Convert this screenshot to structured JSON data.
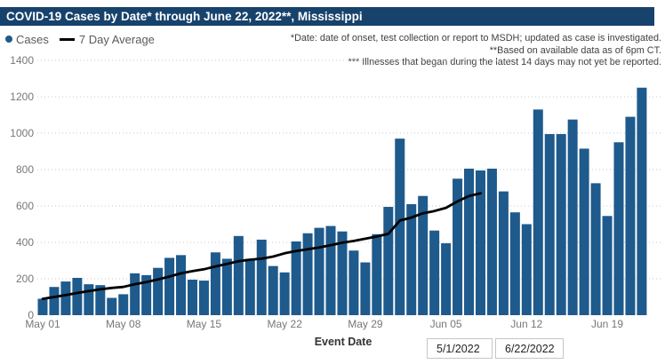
{
  "title_bar": {
    "text": "COVID-19 Cases by Date* through June 22, 2022**, Mississippi",
    "bg_color": "#17426B"
  },
  "legend": {
    "cases_label": "Cases",
    "avg_label": "7 Day Average",
    "dot_color": "#1E5A8C",
    "line_color": "#000000"
  },
  "annotations": {
    "line1": "*Date: date of onset, test collection or report to MSDH; updated as case is investigated.",
    "line2": "**Based on available data as of 6pm CT.",
    "line3": "*** Illnesses that began during the latest 14 days may not yet be reported."
  },
  "axis": {
    "x_title": "Event Date"
  },
  "date_filters": {
    "start": "5/1/2022",
    "end": "6/22/2022"
  },
  "chart_data": {
    "type": "bar",
    "title": "COVID-19 Cases by Date* through June 22, 2022**, Mississippi",
    "xlabel": "Event Date",
    "ylabel": "",
    "ylim": [
      0,
      1400
    ],
    "y_ticks": [
      0,
      200,
      400,
      600,
      800,
      1000,
      1200,
      1400
    ],
    "grid": "horizontal-dotted",
    "legend_position": "top-left",
    "x_tick_labels": [
      "May 01",
      "May 08",
      "May 15",
      "May 22",
      "May 29",
      "Jun 05",
      "Jun 12",
      "Jun 19"
    ],
    "x_tick_indices": [
      0,
      7,
      14,
      21,
      28,
      35,
      42,
      49
    ],
    "categories": [
      "May 01",
      "May 02",
      "May 03",
      "May 04",
      "May 05",
      "May 06",
      "May 07",
      "May 08",
      "May 09",
      "May 10",
      "May 11",
      "May 12",
      "May 13",
      "May 14",
      "May 15",
      "May 16",
      "May 17",
      "May 18",
      "May 19",
      "May 20",
      "May 21",
      "May 22",
      "May 23",
      "May 24",
      "May 25",
      "May 26",
      "May 27",
      "May 28",
      "May 29",
      "May 30",
      "May 31",
      "Jun 01",
      "Jun 02",
      "Jun 03",
      "Jun 04",
      "Jun 05",
      "Jun 06",
      "Jun 07",
      "Jun 08",
      "Jun 09",
      "Jun 10",
      "Jun 11",
      "Jun 12",
      "Jun 13",
      "Jun 14",
      "Jun 15",
      "Jun 16",
      "Jun 17",
      "Jun 18",
      "Jun 19",
      "Jun 20",
      "Jun 21",
      "Jun 22"
    ],
    "series": [
      {
        "name": "Cases",
        "type": "bar",
        "color": "#1E5A8C",
        "values": [
          90,
          155,
          185,
          205,
          170,
          165,
          95,
          115,
          230,
          220,
          260,
          315,
          330,
          195,
          190,
          345,
          310,
          435,
          310,
          415,
          270,
          235,
          405,
          450,
          480,
          490,
          460,
          355,
          290,
          445,
          595,
          970,
          610,
          655,
          465,
          395,
          750,
          805,
          795,
          805,
          680,
          565,
          500,
          1130,
          995,
          995,
          1075,
          915,
          725,
          545,
          950,
          1090,
          1250
        ]
      },
      {
        "name": "7 Day Average",
        "type": "line",
        "color": "#000000",
        "values": [
          90,
          100,
          110,
          122,
          132,
          142,
          150,
          155,
          170,
          182,
          196,
          212,
          230,
          242,
          252,
          268,
          282,
          296,
          305,
          310,
          322,
          340,
          352,
          362,
          372,
          385,
          398,
          408,
          420,
          432,
          447,
          520,
          536,
          560,
          572,
          590,
          625,
          655,
          670
        ]
      }
    ]
  }
}
